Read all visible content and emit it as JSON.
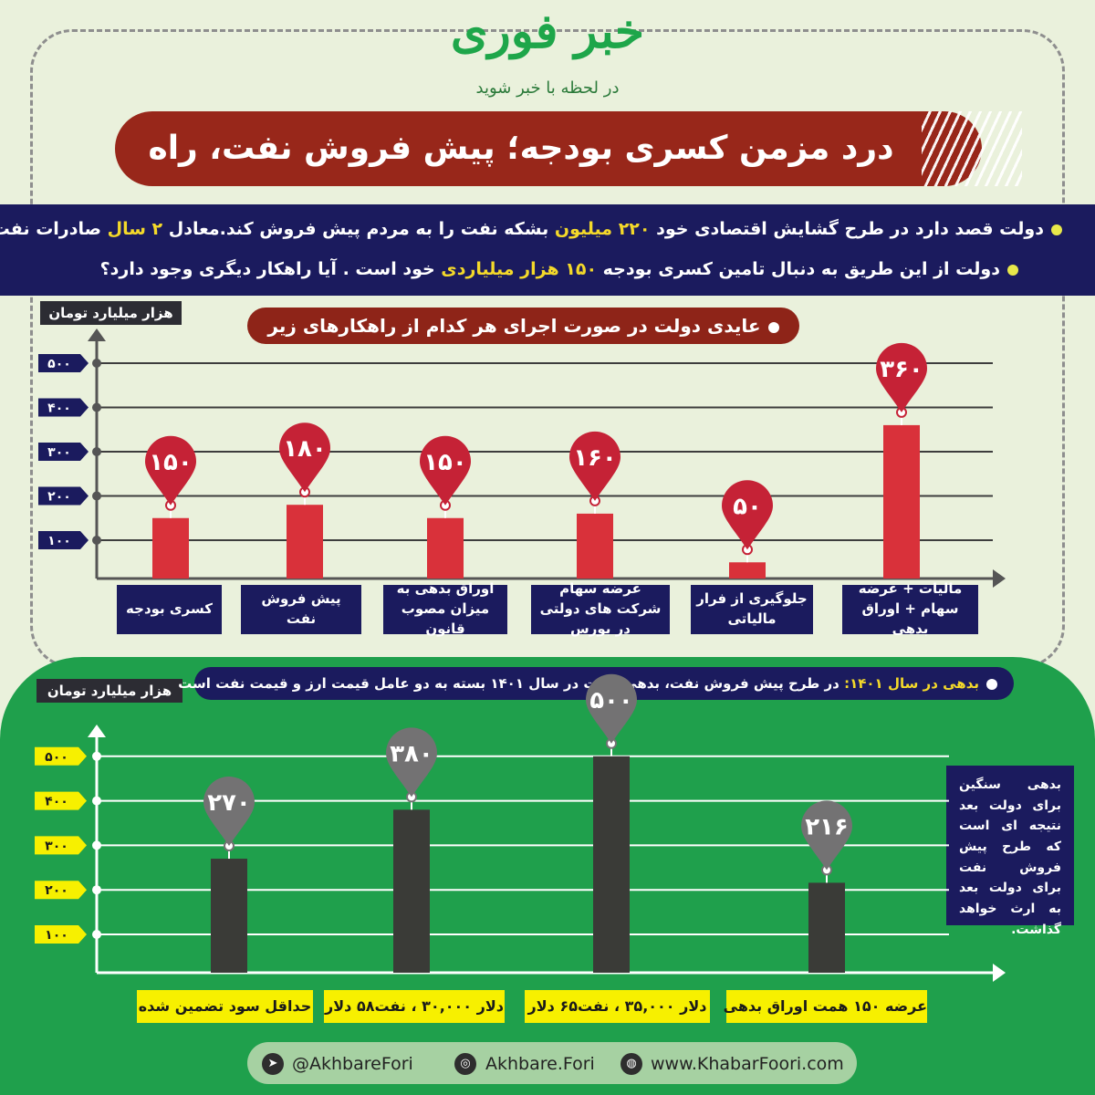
{
  "brand": {
    "logo_text": "خبر فوری",
    "tagline": "در لحظه با خبر شوید"
  },
  "header": {
    "title": "درد مزمن کسری بودجه؛ پیش فروش نفت، راه حل؟!"
  },
  "intro": {
    "line1_a": "دولت قصد دارد در طرح گشایش  اقتصادی خود ",
    "line1_hl1": "۲۲۰ میلیون",
    "line1_b": " بشکه نفت را به مردم پیش فروش کند.معادل ",
    "line1_hl2": "۲ سال",
    "line1_c": " صادرات نفت ایران!",
    "line2_a": "دولت از این طریق به دنبال تامین کسری بودجه ",
    "line2_hl": "۱۵۰ هزار میلیاردی",
    "line2_b": " خود است . آیا راهکار دیگری وجود دارد؟"
  },
  "colors": {
    "bar1": "#d9313a",
    "pin1": "#c52236",
    "bar2": "#3a3b37",
    "pin2": "#737273",
    "navy": "#1b1b5e",
    "green": "#1fa04c",
    "maroon": "#98271a",
    "yellow": "#f7f000"
  },
  "chart_data": [
    {
      "type": "bar",
      "title": "عایدی دولت در صورت اجرای هر کدام از راهکارهای زیر",
      "ylabel": "هزار میلیارد تومان",
      "ylim": [
        0,
        500
      ],
      "yticks": [
        100,
        200,
        300,
        400,
        500
      ],
      "ytick_labels": [
        "۱۰۰",
        "۲۰۰",
        "۳۰۰",
        "۴۰۰",
        "۵۰۰"
      ],
      "grid": true,
      "categories": [
        "کسری بودجه",
        "پیش فروش نفت",
        "اوراق بدهی به میزان مصوب قانون",
        "عرضه سهام شرکت های دولتی در بورس",
        "جلوگیری از فرار مالیاتی",
        "مالیات + عرضه سهام + اوراق بدهی"
      ],
      "values": [
        150,
        180,
        150,
        160,
        50,
        360
      ],
      "value_labels": [
        "۱۵۰",
        "۱۸۰",
        "۱۵۰",
        "۱۶۰",
        "۵۰",
        "۳۶۰"
      ]
    },
    {
      "type": "bar",
      "title": "بدهی در سال ۱۴۰۱: در طرح پیش فروش نفت، بدهی دولت در سال ۱۴۰۱ بسته به دو عامل قیمت ارز و قیمت نفت است",
      "title_hl": "بدهی در سال ۱۴۰۱:",
      "title_rest": " در طرح پیش فروش نفت، بدهی دولت در سال ۱۴۰۱ بسته به دو عامل قیمت ارز و قیمت نفت است",
      "ylabel": "هزار میلیارد تومان",
      "ylim": [
        0,
        500
      ],
      "yticks": [
        100,
        200,
        300,
        400,
        500
      ],
      "ytick_labels": [
        "۱۰۰",
        "۲۰۰",
        "۳۰۰",
        "۴۰۰",
        "۵۰۰"
      ],
      "grid": true,
      "categories": [
        "حداقل سود تضمین شده",
        "دلار ۳۰,۰۰۰ ، نفت۵۸ دلار",
        "دلار ۳۵,۰۰۰ ، نفت۶۵ دلار",
        "عرضه ۱۵۰ همت اوراق بدهی"
      ],
      "values": [
        270,
        380,
        500,
        216
      ],
      "value_labels": [
        "۲۷۰",
        "۳۸۰",
        "۵۰۰",
        "۲۱۶"
      ]
    }
  ],
  "note": "بدهی سنگین برای دولت بعد نتیجه ای است که طرح پیش فروش نفت برای دولت بعد به ارث خواهد گذاشت.",
  "footer": {
    "telegram": "@AkhbareFori",
    "instagram": "Akhbare.Fori",
    "website": "www.KhabarFoori.com"
  },
  "icons": [
    "telegram-icon",
    "instagram-icon",
    "globe-icon"
  ]
}
